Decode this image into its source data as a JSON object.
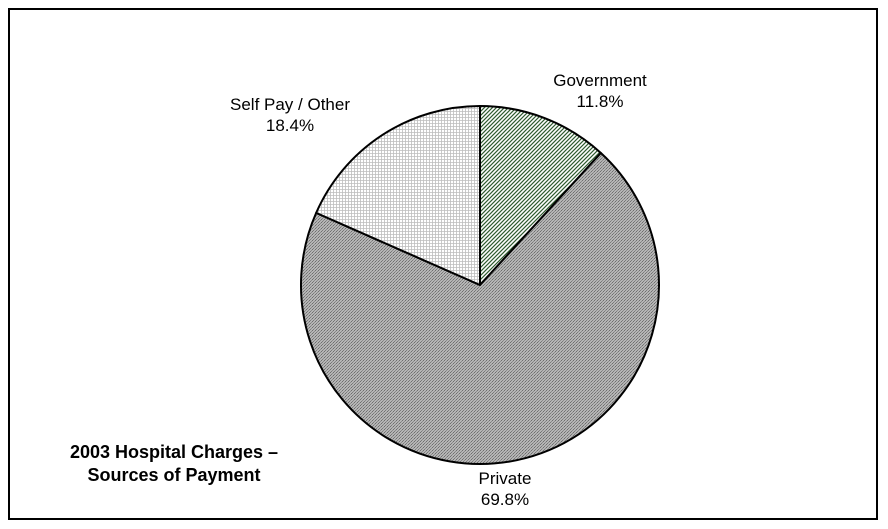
{
  "chart_data": {
    "type": "pie",
    "title_line1": "2003 Hospital Charges –",
    "title_line2": "Sources of Payment",
    "slices": [
      {
        "name": "Government",
        "value": 11.8,
        "label": "11.8%",
        "color": "#ffffff",
        "pattern": "green-diagonal"
      },
      {
        "name": "Private",
        "value": 69.8,
        "label": "69.8%",
        "color": "#a0a0a0",
        "pattern": "dark-dots"
      },
      {
        "name": "Self Pay / Other",
        "value": 18.4,
        "label": "18.4%",
        "color": "#f0f0f0",
        "pattern": "light-grid"
      }
    ]
  }
}
